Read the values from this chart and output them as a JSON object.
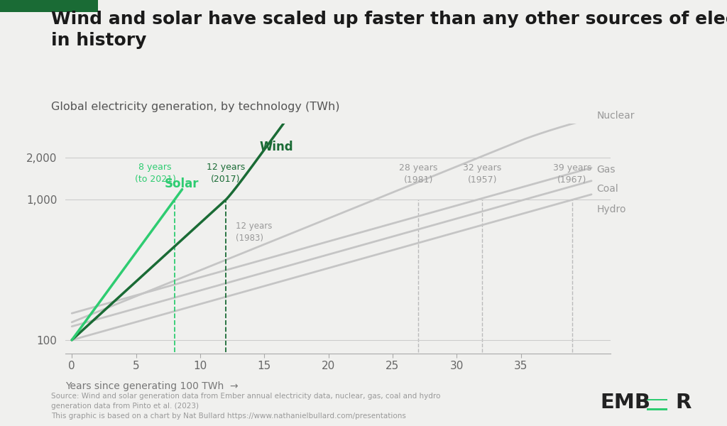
{
  "title": "Wind and solar have scaled up faster than any other sources of electricity\nin history",
  "subtitle": "Global electricity generation, by technology (TWh)",
  "background_color": "#f0f0ee",
  "title_fontsize": 18,
  "subtitle_fontsize": 11.5,
  "source_text": "Source: Wind and solar generation data from Ember annual electricity data, nuclear, gas, coal and hydro\ngeneration data from Pinto et al. (2023)\nThis graphic is based on a chart by Nat Bullard https://www.nathanielbullard.com/presentations",
  "wind_color": "#1a6b35",
  "solar_color": "#2ecc71",
  "grey_color": "#c5c5c5",
  "annotation_grey": "#aaaaaa",
  "ylim_log": [
    80,
    3500
  ],
  "xlim": [
    -0.5,
    42
  ],
  "yticks": [
    100,
    1000,
    2000
  ],
  "xticks": [
    0,
    5,
    10,
    15,
    20,
    25,
    30,
    35
  ]
}
